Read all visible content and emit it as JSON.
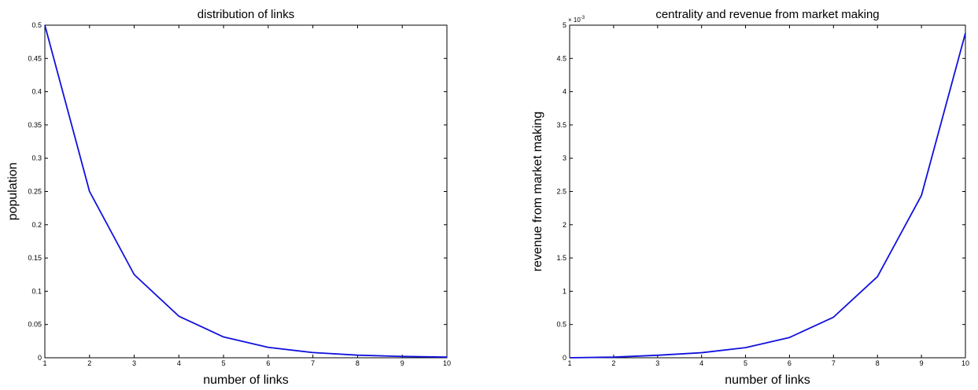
{
  "colors": {
    "series": "#1111dd",
    "axes": "#000000",
    "background": "#ffffff"
  },
  "chart_data": [
    {
      "type": "line",
      "title": "distribution of links",
      "xlabel": "number of links",
      "ylabel": "population",
      "xlim": [
        1,
        10
      ],
      "ylim": [
        0,
        0.5
      ],
      "grid": false,
      "legend": "none",
      "xticks": [
        "1",
        "2",
        "3",
        "4",
        "5",
        "6",
        "7",
        "8",
        "9",
        "10"
      ],
      "yticks": [
        "0",
        "0.05",
        "0.1",
        "0.15",
        "0.2",
        "0.25",
        "0.3",
        "0.35",
        "0.4",
        "0.45",
        "0.5"
      ],
      "y_exponent": "",
      "series": [
        {
          "x": [
            1,
            2,
            3,
            4,
            5,
            6,
            7,
            8,
            9,
            10
          ],
          "values": [
            0.5,
            0.25,
            0.125,
            0.0625,
            0.03125,
            0.015625,
            0.0078,
            0.0039,
            0.002,
            0.001
          ]
        }
      ]
    },
    {
      "type": "line",
      "title": "centrality and revenue from market making",
      "xlabel": "number of links",
      "ylabel": "revenue from market making",
      "xlim": [
        1,
        10
      ],
      "ylim": [
        0,
        5
      ],
      "grid": false,
      "legend": "none",
      "xticks": [
        "1",
        "2",
        "3",
        "4",
        "5",
        "6",
        "7",
        "8",
        "9",
        "10"
      ],
      "yticks": [
        "0",
        "0.5",
        "1",
        "1.5",
        "2",
        "2.5",
        "3",
        "3.5",
        "4",
        "4.5",
        "5"
      ],
      "y_exponent": "× 10",
      "y_exponent_power": "-3",
      "series": [
        {
          "x": [
            1,
            2,
            3,
            4,
            5,
            6,
            7,
            8,
            9,
            10
          ],
          "values": [
            0.0,
            0.0095,
            0.038,
            0.076,
            0.152,
            0.305,
            0.61,
            1.22,
            2.44,
            4.88
          ]
        }
      ]
    }
  ]
}
